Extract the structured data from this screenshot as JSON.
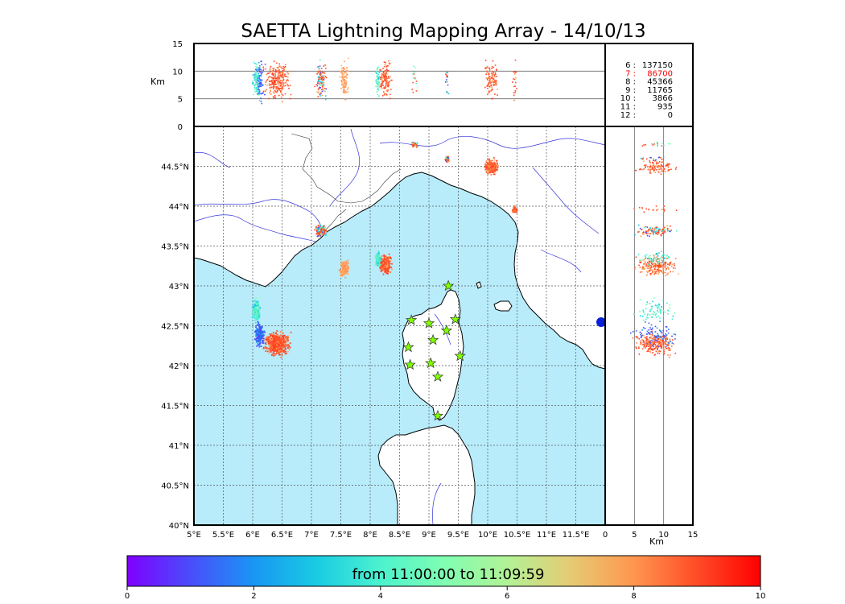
{
  "title": "SAETTA Lightning Mapping Array - 14/10/13",
  "top_panel": {
    "ylabel": "Km",
    "yticks": [
      "15",
      "10",
      "5",
      "0"
    ],
    "ytick_values": [
      15,
      10,
      5,
      0
    ]
  },
  "map": {
    "lon_ticks": [
      "5°E",
      "5.5°E",
      "6°E",
      "6.5°E",
      "7°E",
      "7.5°E",
      "8°E",
      "8.5°E",
      "9°E",
      "9.5°E",
      "10°E",
      "10.5°E",
      "11°E",
      "11.5°E"
    ],
    "lat_ticks": [
      "44.5°N",
      "44°N",
      "43.5°N",
      "43°N",
      "42.5°N",
      "42°N",
      "41.5°N",
      "41°N",
      "40.5°N",
      "40°N"
    ],
    "lon_range": [
      5,
      12
    ],
    "lat_range": [
      40,
      45
    ],
    "sea_color": "#b8ecfb",
    "land_color": "#ffffff",
    "river_color": "#3333dd",
    "station_marker": "star-icon",
    "station_color": "#7fff00",
    "stations": [
      [
        8.7,
        42.57
      ],
      [
        9.0,
        42.53
      ],
      [
        9.45,
        42.58
      ],
      [
        9.33,
        43.0
      ],
      [
        9.07,
        42.32
      ],
      [
        8.65,
        42.23
      ],
      [
        9.3,
        42.44
      ],
      [
        8.68,
        42.01
      ],
      [
        9.03,
        42.03
      ],
      [
        9.53,
        42.12
      ],
      [
        9.15,
        41.86
      ],
      [
        9.15,
        41.37
      ]
    ]
  },
  "side_panel": {
    "xlabel": "Km",
    "xticks": [
      "0",
      "5",
      "10",
      "15"
    ],
    "xtick_values": [
      0,
      5,
      10,
      15
    ]
  },
  "station_counts": [
    {
      "n": "6 :",
      "count": "137150",
      "color": "#000000"
    },
    {
      "n": "7 :",
      "count": "86700",
      "color": "#ff0000"
    },
    {
      "n": "8 :",
      "count": "45366",
      "color": "#000000"
    },
    {
      "n": "9 :",
      "count": "11765",
      "color": "#000000"
    },
    {
      "n": "10 :",
      "count": "3866",
      "color": "#000000"
    },
    {
      "n": "11 :",
      "count": "935",
      "color": "#000000"
    },
    {
      "n": "12 :",
      "count": "0",
      "color": "#000000"
    }
  ],
  "colorbar": {
    "label": "from 11:00:00 to 11:09:59",
    "ticks": [
      "0",
      "2",
      "4",
      "6",
      "8",
      "10"
    ],
    "tick_values": [
      0,
      2,
      4,
      6,
      8,
      10
    ],
    "colors": [
      "#7f00ff",
      "#4a4dfb",
      "#1996f3",
      "#19cce3",
      "#4cf2ce",
      "#7ffeb2",
      "#b2f296",
      "#e6cb74",
      "#ff964f",
      "#ff4c27",
      "#ff0000"
    ]
  },
  "clusters": [
    {
      "lon": 6.4,
      "lat": 42.28,
      "rlon": 0.28,
      "rlat": 0.18,
      "pal": "red",
      "n": 520
    },
    {
      "lon": 6.1,
      "lat": 42.4,
      "rlon": 0.12,
      "rlat": 0.18,
      "pal": "blue",
      "n": 170
    },
    {
      "lon": 6.05,
      "lat": 42.7,
      "rlon": 0.08,
      "rlat": 0.18,
      "pal": "cyan",
      "n": 150
    },
    {
      "lon": 7.15,
      "lat": 43.7,
      "rlon": 0.12,
      "rlat": 0.09,
      "pal": "mixed",
      "n": 220
    },
    {
      "lon": 7.55,
      "lat": 43.22,
      "rlon": 0.1,
      "rlat": 0.13,
      "pal": "orange",
      "n": 180
    },
    {
      "lon": 8.25,
      "lat": 43.28,
      "rlon": 0.13,
      "rlat": 0.14,
      "pal": "red",
      "n": 260
    },
    {
      "lon": 8.12,
      "lat": 43.35,
      "rlon": 0.06,
      "rlat": 0.12,
      "pal": "cyan",
      "n": 110
    },
    {
      "lon": 10.05,
      "lat": 44.5,
      "rlon": 0.14,
      "rlat": 0.13,
      "pal": "red",
      "n": 230
    },
    {
      "lon": 10.45,
      "lat": 43.97,
      "rlon": 0.05,
      "rlat": 0.05,
      "pal": "red",
      "n": 40
    },
    {
      "lon": 9.3,
      "lat": 44.6,
      "rlon": 0.05,
      "rlat": 0.05,
      "pal": "mixed",
      "n": 30
    },
    {
      "lon": 8.75,
      "lat": 44.78,
      "rlon": 0.07,
      "rlat": 0.04,
      "pal": "mixed",
      "n": 30
    }
  ]
}
